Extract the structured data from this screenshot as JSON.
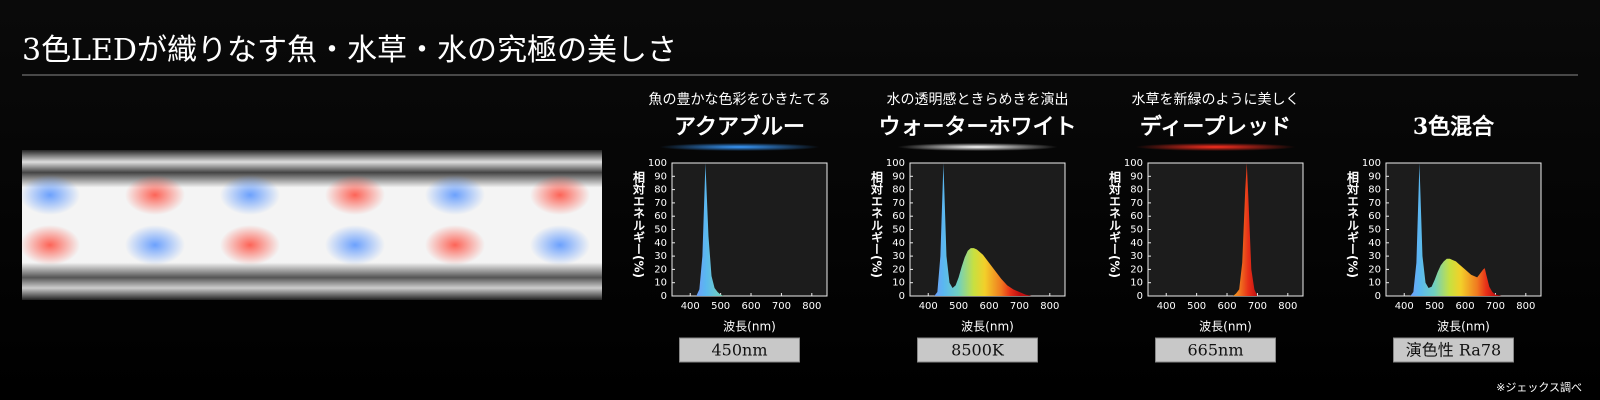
{
  "header": {
    "title": "3色LEDが織りなす魚・水草・水の究極の美しさ"
  },
  "footnote": "※ジェックス調べ",
  "chart_data": [
    {
      "type": "area",
      "subtitle": "魚の豊かな色彩をひきたてる",
      "title": "アクアブルー",
      "color": "#3a9bff",
      "xlabel": "波長(nm)",
      "ylabel": "相対エネルギー(%)",
      "annotation": "450nm",
      "xlim": [
        340,
        850
      ],
      "ylim": [
        0,
        100
      ],
      "xticks": [
        400,
        500,
        600,
        700,
        800
      ],
      "yticks": [
        0,
        10,
        20,
        30,
        40,
        50,
        60,
        70,
        80,
        90,
        100
      ],
      "x": [
        420,
        430,
        440,
        450,
        460,
        470,
        480,
        490,
        500,
        510
      ],
      "values": [
        0,
        5,
        30,
        100,
        45,
        15,
        6,
        3,
        1,
        0
      ]
    },
    {
      "type": "area",
      "subtitle": "水の透明感ときらめきを演出",
      "title": "ウォーターホワイト",
      "color": "#ffffff",
      "xlabel": "波長(nm)",
      "ylabel": "相対エネルギー(%)",
      "annotation": "8500K",
      "xlim": [
        340,
        850
      ],
      "ylim": [
        0,
        100
      ],
      "xticks": [
        400,
        500,
        600,
        700,
        800
      ],
      "yticks": [
        0,
        10,
        20,
        30,
        40,
        50,
        60,
        70,
        80,
        90,
        100
      ],
      "x": [
        420,
        430,
        440,
        450,
        460,
        470,
        480,
        490,
        500,
        510,
        520,
        530,
        540,
        550,
        560,
        570,
        580,
        590,
        600,
        620,
        640,
        660,
        680,
        700,
        720,
        740
      ],
      "values": [
        0,
        3,
        30,
        100,
        30,
        10,
        6,
        8,
        14,
        22,
        29,
        34,
        36,
        36,
        35,
        33,
        31,
        28,
        25,
        19,
        13,
        8,
        5,
        3,
        1,
        0
      ]
    },
    {
      "type": "area",
      "subtitle": "水草を新緑のように美しく",
      "title": "ディープレッド",
      "color": "#ff3020",
      "xlabel": "波長(nm)",
      "ylabel": "相対エネルギー(%)",
      "annotation": "665nm",
      "xlim": [
        340,
        850
      ],
      "ylim": [
        0,
        100
      ],
      "xticks": [
        400,
        500,
        600,
        700,
        800
      ],
      "yticks": [
        0,
        10,
        20,
        30,
        40,
        50,
        60,
        70,
        80,
        90,
        100
      ],
      "x": [
        620,
        630,
        640,
        650,
        660,
        665,
        670,
        680,
        690,
        700
      ],
      "values": [
        0,
        2,
        5,
        25,
        80,
        100,
        75,
        20,
        5,
        0
      ]
    },
    {
      "type": "area",
      "title": "3色混合",
      "xlabel": "波長(nm)",
      "ylabel": "相対エネルギー(%)",
      "annotation": "演色性 Ra78",
      "xlim": [
        340,
        850
      ],
      "ylim": [
        0,
        100
      ],
      "xticks": [
        400,
        500,
        600,
        700,
        800
      ],
      "yticks": [
        0,
        10,
        20,
        30,
        40,
        50,
        60,
        70,
        80,
        90,
        100
      ],
      "x": [
        420,
        430,
        440,
        450,
        460,
        470,
        480,
        490,
        500,
        510,
        520,
        530,
        540,
        550,
        560,
        570,
        580,
        590,
        600,
        620,
        640,
        660,
        665,
        670,
        680,
        690,
        700,
        720
      ],
      "values": [
        0,
        3,
        25,
        100,
        30,
        10,
        6,
        7,
        12,
        18,
        23,
        26,
        28,
        28,
        27,
        26,
        24,
        22,
        20,
        16,
        14,
        20,
        21,
        16,
        7,
        3,
        1,
        0
      ]
    }
  ]
}
